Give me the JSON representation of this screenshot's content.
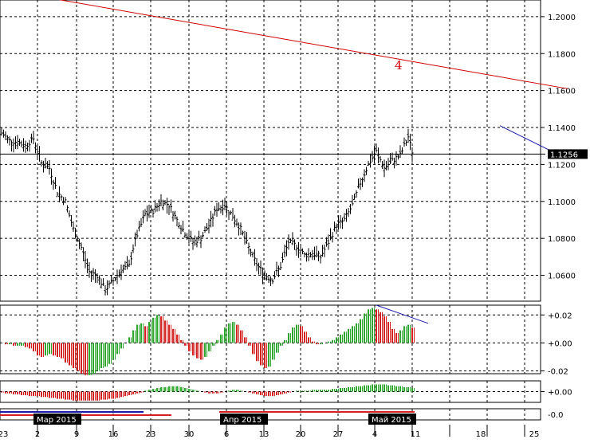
{
  "colors": {
    "background": "#ffffff",
    "grid": "#000000",
    "price_bars": "#000000",
    "trendline": "#d00000",
    "blue_line": "#1a1aa8",
    "osc_up": "#2ea52e",
    "osc_down": "#d42020",
    "month_box": "#000000"
  },
  "chart_data": [
    {
      "type": "bar",
      "name": "price",
      "y_ticks": [
        "1.2000",
        "1.1800",
        "1.1600",
        "1.1400",
        "1.1200",
        "1.1000",
        "1.0800",
        "1.0600"
      ],
      "ylim": [
        1.046,
        1.209
      ],
      "current_price_label": "1.1256",
      "current_price": 1.1256,
      "annotation": "4",
      "x_labels": [
        "23",
        "2",
        "9",
        "16",
        "23",
        "30",
        "6",
        "13",
        "20",
        "27",
        "4",
        "11",
        "18",
        "25"
      ],
      "month_labels": [
        "Мар 2015",
        "Апр 2015",
        "Май 2015"
      ],
      "close_path": [
        [
          0,
          1.137
        ],
        [
          2,
          1.133
        ],
        [
          4,
          1.132
        ],
        [
          6,
          1.13
        ],
        [
          8,
          1.134
        ],
        [
          10,
          1.121
        ],
        [
          12,
          1.118
        ],
        [
          14,
          1.105
        ],
        [
          16,
          1.1
        ],
        [
          18,
          1.085
        ],
        [
          20,
          1.075
        ],
        [
          22,
          1.062
        ],
        [
          24,
          1.06
        ],
        [
          26,
          1.052
        ],
        [
          28,
          1.057
        ],
        [
          30,
          1.063
        ],
        [
          32,
          1.065
        ],
        [
          33,
          1.075
        ],
        [
          34,
          1.082
        ],
        [
          36,
          1.093
        ],
        [
          38,
          1.095
        ],
        [
          40,
          1.1
        ],
        [
          42,
          1.098
        ],
        [
          44,
          1.09
        ],
        [
          46,
          1.083
        ],
        [
          48,
          1.078
        ],
        [
          50,
          1.08
        ],
        [
          52,
          1.087
        ],
        [
          54,
          1.096
        ],
        [
          56,
          1.098
        ],
        [
          58,
          1.092
        ],
        [
          60,
          1.085
        ],
        [
          62,
          1.075
        ],
        [
          64,
          1.066
        ],
        [
          66,
          1.06
        ],
        [
          68,
          1.058
        ],
        [
          70,
          1.065
        ],
        [
          72,
          1.078
        ],
        [
          74,
          1.076
        ],
        [
          76,
          1.071
        ],
        [
          78,
          1.072
        ],
        [
          80,
          1.07
        ],
        [
          82,
          1.078
        ],
        [
          84,
          1.087
        ],
        [
          86,
          1.09
        ],
        [
          88,
          1.098
        ],
        [
          90,
          1.11
        ],
        [
          92,
          1.12
        ],
        [
          94,
          1.127
        ],
        [
          96,
          1.118
        ],
        [
          98,
          1.122
        ],
        [
          100,
          1.125
        ],
        [
          102,
          1.135
        ],
        [
          103,
          1.127
        ]
      ],
      "trendline": {
        "start": [
          -1,
          1.215
        ],
        "end": [
          142,
          1.161
        ]
      },
      "blue_line": {
        "start": [
          125,
          1.141
        ],
        "end": [
          140,
          1.125
        ]
      }
    },
    {
      "type": "bar",
      "name": "oscillator",
      "y_ticks": [
        "+0.02",
        "+0.00",
        "-0.02"
      ],
      "ylim": [
        -0.022,
        0.027
      ],
      "values": [
        0,
        -0.001,
        -0.001,
        -0.002,
        -0.002,
        -0.002,
        -0.003,
        -0.004,
        -0.006,
        -0.009,
        -0.01,
        -0.009,
        -0.008,
        -0.009,
        -0.01,
        -0.011,
        -0.014,
        -0.016,
        -0.018,
        -0.02,
        -0.022,
        -0.023,
        -0.023,
        -0.022,
        -0.02,
        -0.018,
        -0.017,
        -0.015,
        -0.012,
        -0.008,
        -0.004,
        0,
        0.004,
        0.009,
        0.013,
        0.014,
        0.012,
        0.015,
        0.018,
        0.02,
        0.019,
        0.016,
        0.013,
        0.01,
        0.006,
        0.002,
        -0.002,
        -0.006,
        -0.009,
        -0.011,
        -0.012,
        -0.01,
        -0.006,
        -0.002,
        0.002,
        0.006,
        0.011,
        0.014,
        0.015,
        0.013,
        0.009,
        0.004,
        -0.002,
        -0.008,
        -0.013,
        -0.016,
        -0.018,
        -0.017,
        -0.012,
        -0.007,
        -0.002,
        0.002,
        0.007,
        0.011,
        0.013,
        0.012,
        0.008,
        0.004,
        0.001,
        -0.001,
        -0.001,
        0,
        0.001,
        0.002,
        0.004,
        0.006,
        0.008,
        0.01,
        0.012,
        0.014,
        0.017,
        0.021,
        0.024,
        0.025,
        0.024,
        0.022,
        0.019,
        0.015,
        0.01,
        0.007,
        0.009,
        0.012,
        0.013,
        0.011
      ],
      "divergence_line": {
        "start": [
          94,
          0.027
        ],
        "end": [
          107,
          0.014
        ]
      }
    },
    {
      "type": "bar",
      "name": "lower_oscillator",
      "y_ticks": [
        "+0.00",
        "-0.0"
      ],
      "ylim": [
        -0.012,
        0.012
      ],
      "values": [
        -0.001,
        -0.002,
        -0.002,
        -0.003,
        -0.003,
        -0.004,
        -0.004,
        -0.005,
        -0.005,
        -0.005,
        -0.006,
        -0.006,
        -0.007,
        -0.007,
        -0.008,
        -0.008,
        -0.009,
        -0.009,
        -0.01,
        -0.01,
        -0.01,
        -0.01,
        -0.01,
        -0.01,
        -0.01,
        -0.009,
        -0.009,
        -0.008,
        -0.008,
        -0.007,
        -0.006,
        -0.005,
        -0.004,
        -0.003,
        -0.002,
        -0.001,
        0.001,
        0.002,
        0.003,
        0.004,
        0.005,
        0.005,
        0.006,
        0.006,
        0.006,
        0.005,
        0.004,
        0.003,
        0.002,
        0.001,
        0,
        -0.001,
        -0.002,
        -0.002,
        -0.002,
        -0.001,
        0,
        0.001,
        0.002,
        0.002,
        0.001,
        0,
        -0.001,
        -0.002,
        -0.003,
        -0.004,
        -0.005,
        -0.005,
        -0.005,
        -0.004,
        -0.003,
        -0.002,
        -0.001,
        0,
        0.001,
        0.001,
        0.001,
        0.001,
        0.002,
        0.002,
        0.002,
        0.002,
        0.002,
        0.003,
        0.003,
        0.004,
        0.004,
        0.005,
        0.005,
        0.006,
        0.006,
        0.007,
        0.007,
        0.008,
        0.008,
        0.008,
        0.008,
        0.007,
        0.007,
        0.006,
        0.006,
        0.005,
        0.005,
        0.004
      ]
    }
  ]
}
